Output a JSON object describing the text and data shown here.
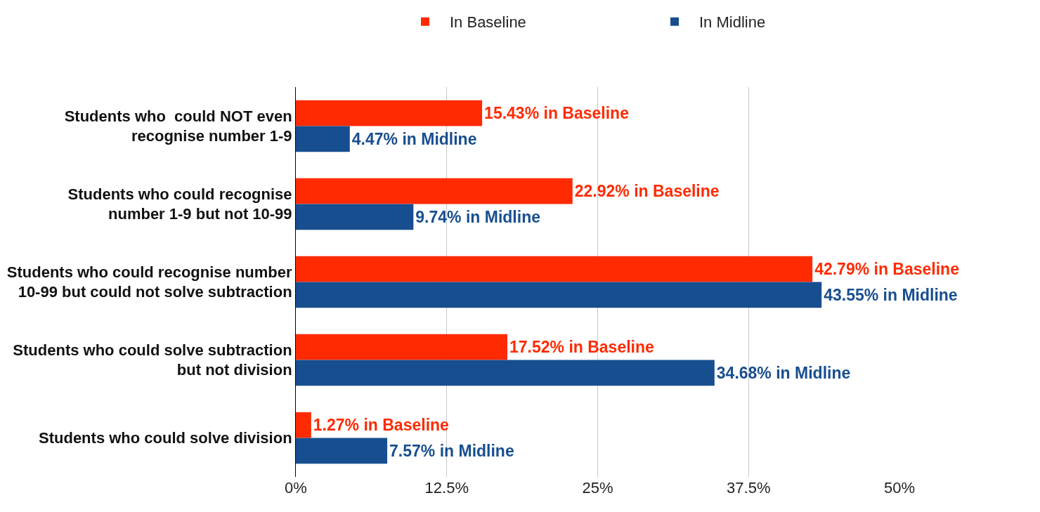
{
  "chart_data": {
    "type": "bar",
    "orientation": "horizontal",
    "categories": [
      "Students who  could NOT even\nrecognise number 1-9",
      "Students who could recognise\nnumber 1-9 but not 10-99",
      "Students who could recognise number\n10-99 but could not solve subtraction",
      "Students who could solve subtraction\nbut not division",
      "Students who could solve division"
    ],
    "series": [
      {
        "name": "In Baseline",
        "color": "#ff2a00",
        "values": [
          15.43,
          22.92,
          42.79,
          17.52,
          1.27
        ],
        "value_labels": [
          "15.43% in Baseline",
          "22.92% in Baseline",
          "42.79% in Baseline",
          "17.52% in Baseline",
          "1.27% in Baseline"
        ]
      },
      {
        "name": "In Midline",
        "color": "#174e8f",
        "values": [
          4.47,
          9.74,
          43.55,
          34.68,
          7.57
        ],
        "value_labels": [
          "4.47% in Midline",
          "9.74% in Midline",
          "43.55% in Midline",
          "34.68% in Midline",
          "7.57% in Midline"
        ]
      }
    ],
    "xlim": [
      0,
      50
    ],
    "xticks": [
      {
        "value": 0,
        "label": "0%"
      },
      {
        "value": 12.5,
        "label": "12.5%"
      },
      {
        "value": 25,
        "label": "25%"
      },
      {
        "value": 37.5,
        "label": "37.5%"
      },
      {
        "value": 50,
        "label": "50%"
      }
    ],
    "grid": "x",
    "legend": "top right"
  }
}
